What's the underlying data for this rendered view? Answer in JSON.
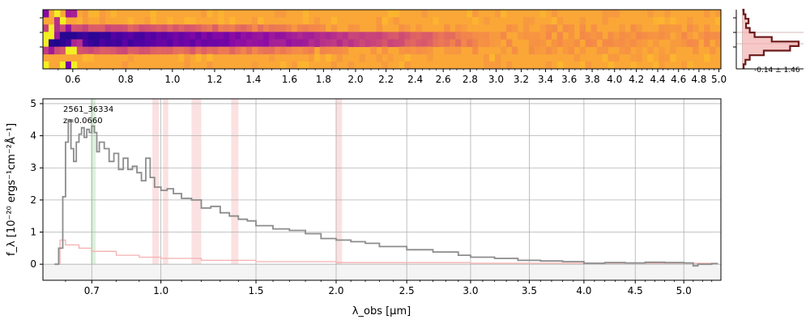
{
  "chart_data": [
    {
      "panel": "2d-spectrum",
      "type": "heatmap",
      "colormap": "plasma",
      "x_scale": "sqrt-wavelength",
      "xticks": [
        0.6,
        0.8,
        1.0,
        1.2,
        1.4,
        1.6,
        1.8,
        2.0,
        2.2,
        2.4,
        2.6,
        2.8,
        3.0,
        3.2,
        3.4,
        3.6,
        3.8,
        4.0,
        4.2,
        4.4,
        4.6,
        4.8,
        5.0
      ],
      "xtick_labels": [
        "0.6",
        "0.8",
        "1.0",
        "1.2",
        "1.4",
        "1.6",
        "1.8",
        "2.0",
        "2.2",
        "2.4",
        "2.6",
        "2.8",
        "3.0",
        "3.2",
        "3.4",
        "3.6",
        "3.8",
        "4.0",
        "4.2",
        "4.4",
        "4.6",
        "4.8",
        "5.0"
      ],
      "xlim": [
        0.5,
        5.02
      ],
      "trace_rows": [
        3,
        4
      ],
      "trace_fade_at": 3.0
    },
    {
      "panel": "profile",
      "type": "line",
      "annotation": "-0.14 ± 1.46",
      "profile": [
        0.02,
        0.05,
        0.1,
        0.06,
        0.12,
        0.2,
        0.48,
        0.92,
        0.78,
        0.35,
        0.12,
        0.05,
        0.02
      ],
      "xlim": [
        -0.1,
        1.0
      ]
    },
    {
      "panel": "1d-spectrum",
      "type": "line",
      "ylabel": "f_λ [10⁻²⁰ ergs⁻¹cm⁻²Å⁻¹]",
      "xlabel": "λ_obs [μm]",
      "xlim": [
        0.52,
        5.4
      ],
      "ylim": [
        -0.5,
        5.15
      ],
      "x_scale": "sqrt",
      "xticks": [
        0.7,
        1.0,
        1.5,
        2.0,
        2.5,
        3.0,
        3.5,
        4.0,
        4.5,
        5.0
      ],
      "xtick_labels": [
        "0.7",
        "1.0",
        "1.5",
        "2.0",
        "2.5",
        "3.0",
        "3.5",
        "4.0",
        "4.5",
        "5.0"
      ],
      "yticks": [
        0,
        1,
        2,
        3,
        4,
        5
      ],
      "ytick_labels": [
        "0",
        "1",
        "2",
        "3",
        "4",
        "5"
      ],
      "grid": true,
      "annotation_id": "2561_36334",
      "annotation_z": "z=0.0660",
      "flux": [
        [
          0.56,
          0.0
        ],
        [
          0.575,
          0.5
        ],
        [
          0.59,
          2.1
        ],
        [
          0.6,
          3.8
        ],
        [
          0.61,
          4.5
        ],
        [
          0.62,
          3.6
        ],
        [
          0.63,
          3.2
        ],
        [
          0.64,
          3.8
        ],
        [
          0.65,
          4.05
        ],
        [
          0.66,
          4.25
        ],
        [
          0.67,
          3.95
        ],
        [
          0.68,
          4.2
        ],
        [
          0.69,
          4.1
        ],
        [
          0.7,
          4.3
        ],
        [
          0.71,
          4.1
        ],
        [
          0.72,
          3.5
        ],
        [
          0.73,
          3.8
        ],
        [
          0.75,
          3.6
        ],
        [
          0.77,
          3.2
        ],
        [
          0.79,
          3.45
        ],
        [
          0.81,
          2.95
        ],
        [
          0.83,
          3.3
        ],
        [
          0.85,
          2.95
        ],
        [
          0.87,
          3.05
        ],
        [
          0.89,
          2.85
        ],
        [
          0.91,
          2.6
        ],
        [
          0.93,
          3.3
        ],
        [
          0.95,
          2.7
        ],
        [
          0.97,
          2.4
        ],
        [
          1.0,
          2.3
        ],
        [
          1.03,
          2.35
        ],
        [
          1.06,
          2.2
        ],
        [
          1.1,
          2.05
        ],
        [
          1.15,
          2.0
        ],
        [
          1.2,
          1.75
        ],
        [
          1.25,
          1.8
        ],
        [
          1.3,
          1.6
        ],
        [
          1.35,
          1.5
        ],
        [
          1.4,
          1.4
        ],
        [
          1.45,
          1.35
        ],
        [
          1.5,
          1.2
        ],
        [
          1.6,
          1.1
        ],
        [
          1.7,
          1.05
        ],
        [
          1.8,
          0.95
        ],
        [
          1.9,
          0.8
        ],
        [
          2.0,
          0.75
        ],
        [
          2.1,
          0.7
        ],
        [
          2.2,
          0.65
        ],
        [
          2.3,
          0.55
        ],
        [
          2.5,
          0.45
        ],
        [
          2.7,
          0.38
        ],
        [
          2.9,
          0.28
        ],
        [
          3.0,
          0.22
        ],
        [
          3.2,
          0.18
        ],
        [
          3.4,
          0.12
        ],
        [
          3.6,
          0.1
        ],
        [
          3.8,
          0.08
        ],
        [
          4.0,
          0.03
        ],
        [
          4.2,
          0.05
        ],
        [
          4.4,
          0.04
        ],
        [
          4.6,
          0.06
        ],
        [
          4.8,
          0.05
        ],
        [
          5.0,
          0.04
        ],
        [
          5.1,
          -0.05
        ],
        [
          5.15,
          0.0
        ],
        [
          5.3,
          0.02
        ],
        [
          5.36,
          0.0
        ]
      ],
      "error": [
        [
          0.56,
          0.0
        ],
        [
          0.58,
          0.75
        ],
        [
          0.6,
          0.6
        ],
        [
          0.65,
          0.5
        ],
        [
          0.7,
          0.4
        ],
        [
          0.8,
          0.28
        ],
        [
          0.9,
          0.22
        ],
        [
          1.0,
          0.18
        ],
        [
          1.2,
          0.12
        ],
        [
          1.5,
          0.08
        ],
        [
          2.0,
          0.05
        ],
        [
          3.0,
          0.03
        ],
        [
          4.0,
          0.03
        ],
        [
          5.0,
          0.03
        ],
        [
          5.36,
          0.03
        ]
      ],
      "bands_red": [
        [
          0.96,
          0.99
        ],
        [
          1.01,
          1.035
        ],
        [
          1.15,
          1.2
        ],
        [
          1.36,
          1.4
        ],
        [
          2.0,
          2.04
        ]
      ],
      "bands_green": [
        [
          0.695,
          0.715
        ]
      ],
      "colors": {
        "flux": "#8c8c8c",
        "error": "#f4b0b0",
        "band_red": "#f7c9c9",
        "band_green": "#c3e7c3"
      }
    }
  ]
}
